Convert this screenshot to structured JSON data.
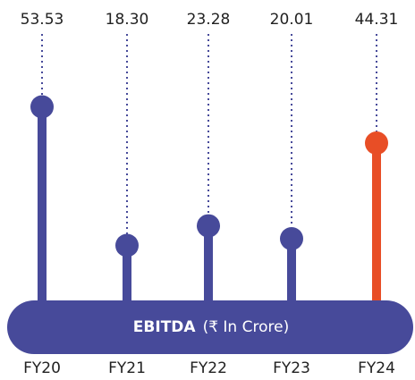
{
  "chart_data": {
    "type": "lollipop",
    "title": "EBITDA",
    "subtitle": "(₹ In Crore)",
    "categories": [
      "FY20",
      "FY21",
      "FY22",
      "FY23",
      "FY24"
    ],
    "values": [
      53.53,
      18.3,
      23.28,
      20.01,
      44.31
    ],
    "value_labels": [
      "53.53",
      "18.30",
      "23.28",
      "20.01",
      "44.31"
    ],
    "colors": [
      "#474a9a",
      "#474a9a",
      "#474a9a",
      "#474a9a",
      "#e84e26"
    ],
    "band_color": "#474a9a",
    "ylim": [
      0,
      60
    ]
  }
}
